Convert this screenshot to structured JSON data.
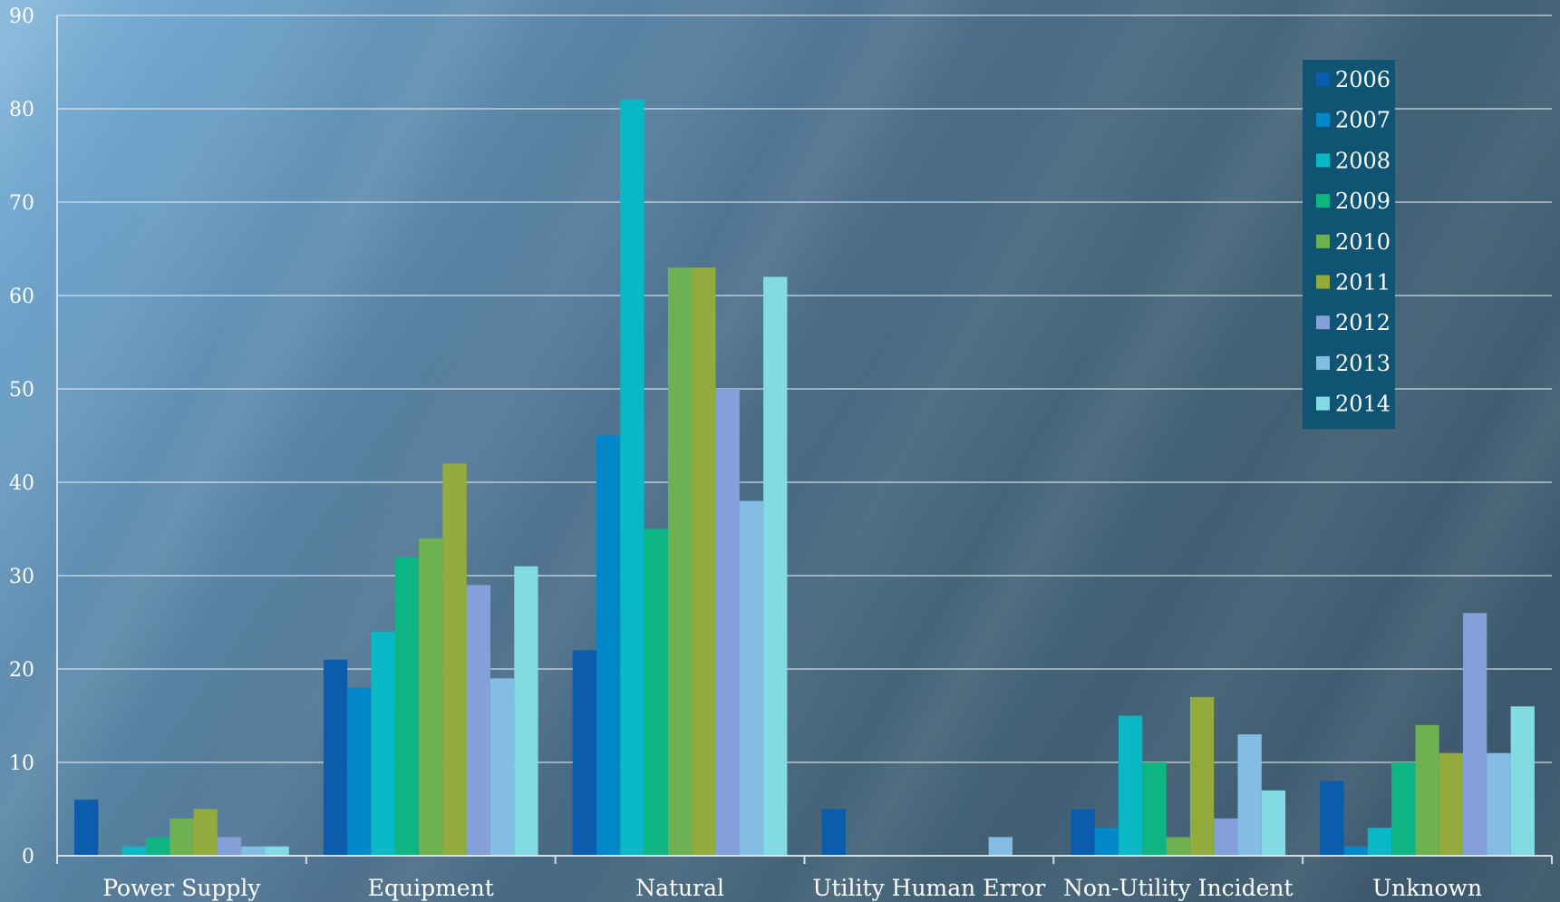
{
  "chart_data": {
    "type": "bar",
    "categories": [
      "Power Supply",
      "Equipment",
      "Natural",
      "Utility Human Error",
      "Non-Utility Incident",
      "Unknown"
    ],
    "series": [
      {
        "name": "2006",
        "color": "#0b5cab",
        "values": [
          6,
          21,
          22,
          5,
          5,
          8
        ]
      },
      {
        "name": "2007",
        "color": "#0288c9",
        "values": [
          0,
          18,
          45,
          0,
          3,
          1
        ]
      },
      {
        "name": "2008",
        "color": "#08b8c4",
        "values": [
          1,
          24,
          81,
          0,
          15,
          3
        ]
      },
      {
        "name": "2009",
        "color": "#0eb583",
        "values": [
          2,
          32,
          35,
          0,
          10,
          10
        ]
      },
      {
        "name": "2010",
        "color": "#6db153",
        "values": [
          4,
          34,
          63,
          0,
          2,
          14
        ]
      },
      {
        "name": "2011",
        "color": "#93aa3d",
        "values": [
          5,
          42,
          63,
          0,
          17,
          11
        ]
      },
      {
        "name": "2012",
        "color": "#84a0d8",
        "values": [
          2,
          29,
          50,
          0,
          4,
          26
        ]
      },
      {
        "name": "2013",
        "color": "#84bde3",
        "values": [
          1,
          19,
          38,
          2,
          13,
          11
        ]
      },
      {
        "name": "2014",
        "color": "#82dbe2",
        "values": [
          1,
          31,
          62,
          0,
          7,
          16
        ]
      }
    ],
    "y_ticks": [
      "0",
      "10",
      "20",
      "30",
      "40",
      "50",
      "60",
      "70",
      "80",
      "90"
    ],
    "ylim": [
      0,
      90
    ],
    "grid": true,
    "legend_position": "top-right",
    "legend_background": "#0f5573",
    "title": "",
    "xlabel": "",
    "ylabel": ""
  }
}
